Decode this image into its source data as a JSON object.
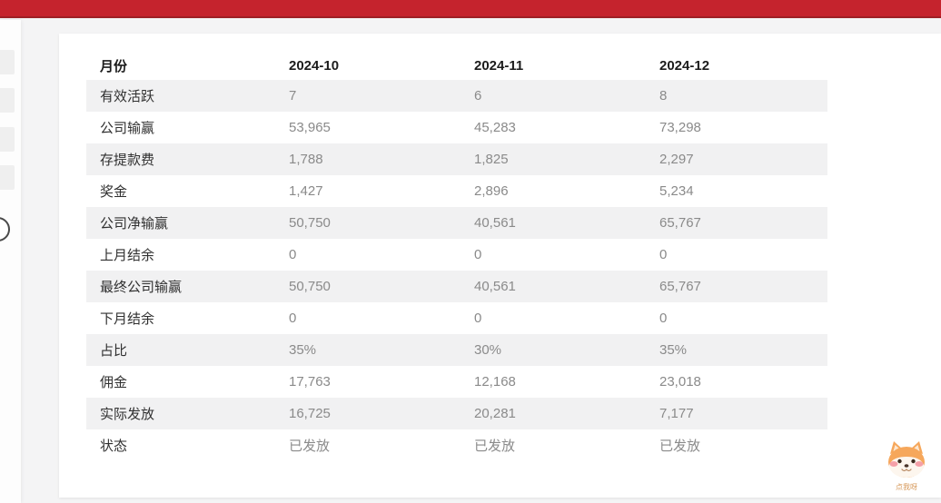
{
  "colors": {
    "topbar": "#c5232d",
    "topbar_edge": "#9e2026",
    "page_bg": "#f4f4f5",
    "card_bg": "#ffffff",
    "stripe": "#f1f1f2",
    "label_text": "#303030",
    "value_text": "#8a8a8a"
  },
  "mascot": {
    "label": "点我呀"
  },
  "table": {
    "header": {
      "label": "月份",
      "months": [
        "2024-10",
        "2024-11",
        "2024-12"
      ]
    },
    "rows": [
      {
        "label": "有效活跃",
        "values": [
          "7",
          "6",
          "8"
        ]
      },
      {
        "label": "公司输赢",
        "values": [
          "53,965",
          "45,283",
          "73,298"
        ]
      },
      {
        "label": "存提款费",
        "values": [
          "1,788",
          "1,825",
          "2,297"
        ]
      },
      {
        "label": "奖金",
        "values": [
          "1,427",
          "2,896",
          "5,234"
        ]
      },
      {
        "label": "公司净输赢",
        "values": [
          "50,750",
          "40,561",
          "65,767"
        ]
      },
      {
        "label": "上月结余",
        "values": [
          "0",
          "0",
          "0"
        ]
      },
      {
        "label": "最终公司输赢",
        "values": [
          "50,750",
          "40,561",
          "65,767"
        ]
      },
      {
        "label": "下月结余",
        "values": [
          "0",
          "0",
          "0"
        ]
      },
      {
        "label": "占比",
        "values": [
          "35%",
          "30%",
          "35%"
        ]
      },
      {
        "label": "佣金",
        "values": [
          "17,763",
          "12,168",
          "23,018"
        ]
      },
      {
        "label": "实际发放",
        "values": [
          "16,725",
          "20,281",
          "7,177"
        ]
      },
      {
        "label": "状态",
        "values": [
          "已发放",
          "已发放",
          "已发放"
        ]
      }
    ]
  }
}
